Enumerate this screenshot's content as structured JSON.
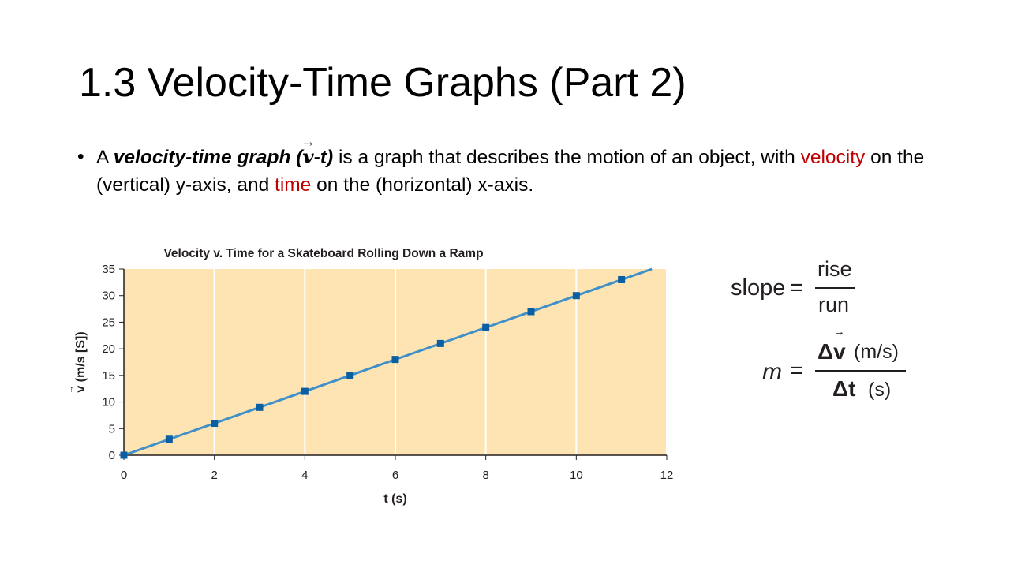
{
  "slide": {
    "title": "1.3 Velocity-Time Graphs (Part 2)",
    "bullet_symbol": "•",
    "bullet": {
      "p1": "A ",
      "term": "velocity-time graph (",
      "term_v": "v",
      "term_arrow": "→",
      "term_t": "-t)",
      "p2": " is a graph that describes the motion of an object, with ",
      "red1": "velocity",
      "p3": " on the (vertical) y-axis, and ",
      "red2": "time",
      "p4": " on the (horizontal) x-axis."
    }
  },
  "colors": {
    "plot_background": "#fde4b2",
    "line": "#3f8fc8",
    "marker": "#0a5fa3",
    "accent_red": "#c00000",
    "gridline": "#ffffff"
  },
  "chart_data": {
    "type": "line",
    "title": "Velocity v. Time for a Skateboard Rolling Down a Ramp",
    "xlabel": "t (s)",
    "ylabel": "v (m/s [S])",
    "xlim": [
      0,
      12
    ],
    "ylim": [
      0,
      35
    ],
    "xticks": [
      0,
      2,
      4,
      6,
      8,
      10,
      12
    ],
    "yticks": [
      0,
      5,
      10,
      15,
      20,
      25,
      30,
      35
    ],
    "grid": "vertical lines at x ticks",
    "points": {
      "x": [
        0,
        1,
        2,
        3,
        4,
        5,
        6,
        7,
        8,
        9,
        10,
        11
      ],
      "y": [
        0,
        3,
        6,
        9,
        12,
        15,
        18,
        21,
        24,
        27,
        30,
        33
      ]
    },
    "trend_line": {
      "x": [
        0,
        11.67
      ],
      "y": [
        0,
        35
      ]
    }
  },
  "formulas": {
    "slope_label": "slope",
    "equals": "=",
    "rise": "rise",
    "run": "run",
    "m": "m",
    "delta_v": "Δv",
    "arrow": "→",
    "v_unit": "(m/s)",
    "delta_t": "Δt",
    "t_unit": "(s)"
  }
}
